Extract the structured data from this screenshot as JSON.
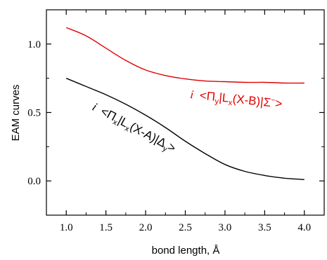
{
  "chart_data": {
    "type": "line",
    "title": "",
    "xlabel": "bond length, Å",
    "ylabel": "EAM curves",
    "xlim": [
      0.75,
      4.25
    ],
    "ylim": [
      -0.25,
      1.25
    ],
    "xticks": [
      "1.0",
      "1.5",
      "2.0",
      "2.5",
      "3.0",
      "3.5",
      "4.0"
    ],
    "yticks": [
      "0.0",
      "0.5",
      "1.0"
    ],
    "grid": false,
    "series": [
      {
        "color": "#e00000",
        "x": [
          1.0,
          1.25,
          1.5,
          1.75,
          2.0,
          2.25,
          2.5,
          2.75,
          3.0,
          3.25,
          3.5,
          3.75,
          4.0
        ],
        "y": [
          1.12,
          1.06,
          0.97,
          0.88,
          0.81,
          0.77,
          0.745,
          0.73,
          0.725,
          0.72,
          0.72,
          0.715,
          0.715
        ]
      },
      {
        "color": "#000000",
        "x": [
          1.0,
          1.25,
          1.5,
          1.75,
          2.0,
          2.25,
          2.5,
          2.75,
          3.0,
          3.25,
          3.5,
          3.75,
          4.0
        ],
        "y": [
          0.75,
          0.69,
          0.63,
          0.56,
          0.48,
          0.39,
          0.29,
          0.2,
          0.12,
          0.07,
          0.04,
          0.02,
          0.01
        ]
      }
    ],
    "annotations": [
      {
        "series_index": 0,
        "color": "#e00000",
        "prefix": "i",
        "parts": [
          "<Π",
          "y",
          "|L",
          "x",
          "(X-B)|Σ",
          "−",
          ">"
        ]
      },
      {
        "series_index": 1,
        "color": "#000000",
        "prefix": "i",
        "parts": [
          "<Π",
          "x",
          "|L",
          "x",
          "(X-A)|Δ",
          "y",
          ">"
        ]
      }
    ]
  }
}
